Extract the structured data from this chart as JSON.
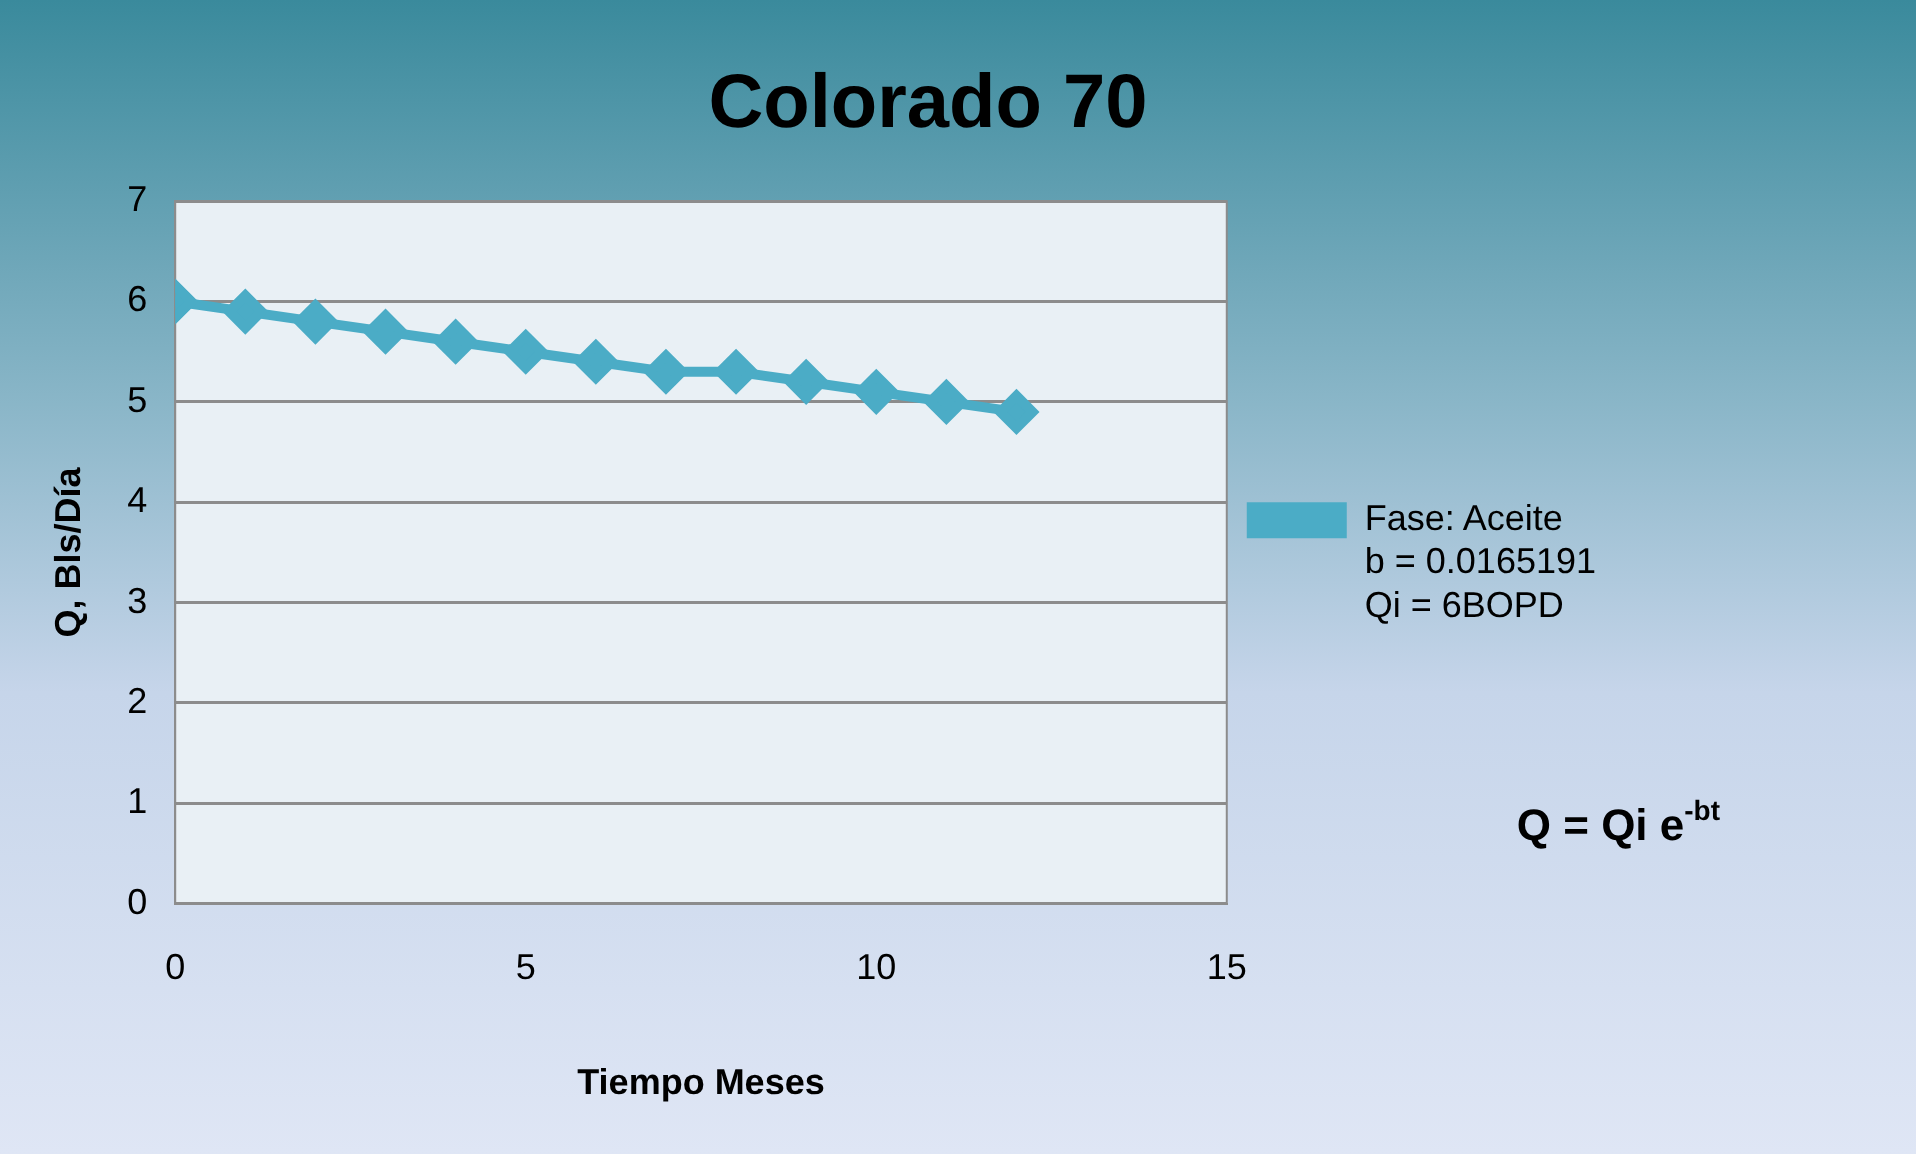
{
  "chart_data": {
    "type": "line",
    "title": "Colorado 70",
    "xlabel": "Tiempo Meses",
    "ylabel": "Q, Bls/Día",
    "x": [
      0,
      1,
      2,
      3,
      4,
      5,
      6,
      7,
      8,
      9,
      10,
      11,
      12
    ],
    "series": [
      {
        "name": "Fase: Aceite\nb = 0.0165191\nQi = 6BOPD",
        "color": "#4bacc6",
        "values": [
          6.0,
          5.9,
          5.8,
          5.7,
          5.6,
          5.5,
          5.4,
          5.3,
          5.3,
          5.2,
          5.1,
          5.0,
          4.9
        ]
      }
    ],
    "xlim": [
      0,
      15
    ],
    "xticks": [
      0,
      5,
      10,
      15
    ],
    "ylim": [
      0,
      7
    ],
    "yticks": [
      0,
      1,
      2,
      3,
      4,
      5,
      6,
      7
    ],
    "grid": "y",
    "legend": "right",
    "marker": "diamond",
    "line_style": "solid",
    "annotations": [
      "Q = Qi e$^{-bt}$"
    ]
  }
}
